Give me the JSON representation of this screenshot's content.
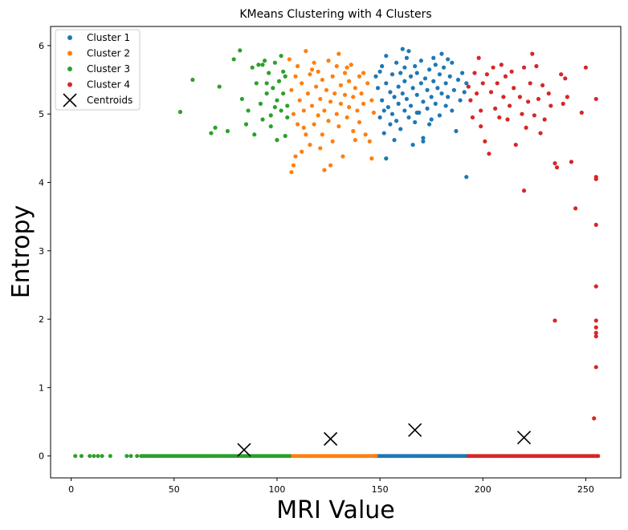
{
  "chart_data": {
    "type": "scatter",
    "title": "KMeans Clustering with 4 Clusters",
    "xlabel": "MRI Value",
    "ylabel": "Entropy",
    "xlim": [
      -10,
      267
    ],
    "ylim": [
      -0.32,
      6.28
    ],
    "xticks": [
      0,
      50,
      100,
      150,
      200,
      250
    ],
    "yticks": [
      0,
      1,
      2,
      3,
      4,
      5,
      6
    ],
    "grid": false,
    "legend_position": "upper-left",
    "legend": [
      {
        "label": "Cluster 1",
        "marker": "dot",
        "color": "#1f77b4"
      },
      {
        "label": "Cluster 2",
        "marker": "dot",
        "color": "#ff7f0e"
      },
      {
        "label": "Cluster 3",
        "marker": "dot",
        "color": "#2ca02c"
      },
      {
        "label": "Cluster 4",
        "marker": "dot",
        "color": "#d62728"
      },
      {
        "label": "Centroids",
        "marker": "x",
        "color": "#000000"
      }
    ],
    "series": [
      {
        "name": "Cluster 1",
        "color": "#1f77b4",
        "baseline_range": [
          148,
          193
        ],
        "points": [
          [
            148,
            5.55
          ],
          [
            149,
            5.38
          ],
          [
            150,
            5.62
          ],
          [
            150,
            4.95
          ],
          [
            151,
            5.2
          ],
          [
            151,
            5.7
          ],
          [
            152,
            5.05
          ],
          [
            152,
            4.72
          ],
          [
            153,
            5.45
          ],
          [
            153,
            5.85
          ],
          [
            154,
            5.1
          ],
          [
            155,
            5.32
          ],
          [
            155,
            4.85
          ],
          [
            156,
            5.58
          ],
          [
            156,
            5.0
          ],
          [
            157,
            5.25
          ],
          [
            158,
            5.75
          ],
          [
            158,
            4.9
          ],
          [
            159,
            5.4
          ],
          [
            159,
            5.15
          ],
          [
            160,
            5.6
          ],
          [
            160,
            4.78
          ],
          [
            161,
            5.3
          ],
          [
            161,
            5.95
          ],
          [
            162,
            5.05
          ],
          [
            162,
            5.48
          ],
          [
            163,
            5.22
          ],
          [
            163,
            5.82
          ],
          [
            164,
            4.95
          ],
          [
            165,
            5.55
          ],
          [
            165,
            5.12
          ],
          [
            166,
            5.38
          ],
          [
            167,
            5.7
          ],
          [
            167,
            4.88
          ],
          [
            168,
            5.28
          ],
          [
            168,
            5.6
          ],
          [
            169,
            5.02
          ],
          [
            170,
            5.45
          ],
          [
            170,
            5.78
          ],
          [
            171,
            5.18
          ],
          [
            171,
            4.65
          ],
          [
            172,
            5.52
          ],
          [
            173,
            5.35
          ],
          [
            173,
            5.08
          ],
          [
            174,
            5.65
          ],
          [
            175,
            5.25
          ],
          [
            175,
            4.92
          ],
          [
            176,
            5.48
          ],
          [
            177,
            5.72
          ],
          [
            177,
            5.15
          ],
          [
            178,
            5.38
          ],
          [
            179,
            5.58
          ],
          [
            179,
            4.98
          ],
          [
            180,
            5.3
          ],
          [
            181,
            5.68
          ],
          [
            182,
            5.12
          ],
          [
            182,
            5.45
          ],
          [
            183,
            5.25
          ],
          [
            184,
            5.55
          ],
          [
            185,
            5.05
          ],
          [
            185,
            5.75
          ],
          [
            186,
            5.35
          ],
          [
            187,
            4.75
          ],
          [
            188,
            5.5
          ],
          [
            189,
            5.2
          ],
          [
            190,
            5.6
          ],
          [
            191,
            5.32
          ],
          [
            192,
            5.45
          ],
          [
            192,
            4.08
          ],
          [
            153,
            4.35
          ],
          [
            157,
            4.62
          ],
          [
            166,
            4.55
          ],
          [
            171,
            4.6
          ],
          [
            164,
            5.92
          ],
          [
            176,
            5.82
          ],
          [
            183,
            5.8
          ],
          [
            162,
            5.68
          ],
          [
            168,
            5.02
          ],
          [
            174,
            4.85
          ],
          [
            180,
            5.88
          ]
        ]
      },
      {
        "name": "Cluster 2",
        "color": "#ff7f0e",
        "baseline_range": [
          106,
          148
        ],
        "points": [
          [
            106,
            5.8
          ],
          [
            107,
            5.35
          ],
          [
            107,
            4.15
          ],
          [
            108,
            5.0
          ],
          [
            108,
            4.25
          ],
          [
            109,
            5.55
          ],
          [
            110,
            4.85
          ],
          [
            110,
            5.7
          ],
          [
            111,
            5.2
          ],
          [
            112,
            4.45
          ],
          [
            112,
            5.45
          ],
          [
            113,
            5.05
          ],
          [
            114,
            5.92
          ],
          [
            114,
            4.7
          ],
          [
            115,
            5.3
          ],
          [
            116,
            5.58
          ],
          [
            116,
            4.55
          ],
          [
            117,
            5.12
          ],
          [
            118,
            4.85
          ],
          [
            118,
            5.75
          ],
          [
            119,
            5.4
          ],
          [
            120,
            4.98
          ],
          [
            120,
            5.62
          ],
          [
            121,
            5.22
          ],
          [
            122,
            4.7
          ],
          [
            122,
            5.5
          ],
          [
            123,
            5.05
          ],
          [
            123,
            4.18
          ],
          [
            124,
            5.35
          ],
          [
            125,
            5.78
          ],
          [
            125,
            4.9
          ],
          [
            126,
            5.18
          ],
          [
            127,
            5.55
          ],
          [
            127,
            4.6
          ],
          [
            128,
            5.3
          ],
          [
            129,
            5.0
          ],
          [
            129,
            5.7
          ],
          [
            130,
            4.82
          ],
          [
            131,
            5.42
          ],
          [
            131,
            5.15
          ],
          [
            132,
            4.38
          ],
          [
            133,
            5.6
          ],
          [
            133,
            5.28
          ],
          [
            134,
            4.95
          ],
          [
            135,
            5.48
          ],
          [
            135,
            5.1
          ],
          [
            136,
            5.72
          ],
          [
            137,
            5.25
          ],
          [
            137,
            4.75
          ],
          [
            138,
            5.38
          ],
          [
            139,
            5.05
          ],
          [
            140,
            5.55
          ],
          [
            140,
            4.88
          ],
          [
            141,
            5.3
          ],
          [
            142,
            5.15
          ],
          [
            143,
            4.7
          ],
          [
            144,
            5.45
          ],
          [
            145,
            4.6
          ],
          [
            146,
            5.2
          ],
          [
            146,
            4.35
          ],
          [
            147,
            5.02
          ],
          [
            109,
            4.38
          ],
          [
            113,
            4.8
          ],
          [
            117,
            5.65
          ],
          [
            121,
            4.5
          ],
          [
            126,
            4.25
          ],
          [
            130,
            5.88
          ],
          [
            134,
            5.68
          ],
          [
            138,
            4.62
          ],
          [
            142,
            5.6
          ]
        ]
      },
      {
        "name": "Cluster 3",
        "color": "#2ca02c",
        "baseline_range": [
          34,
          106
        ],
        "baseline_extra": [
          2,
          5,
          9,
          11,
          13,
          15,
          19,
          27,
          29,
          32
        ],
        "points": [
          [
            53,
            5.03
          ],
          [
            59,
            5.5
          ],
          [
            68,
            4.72
          ],
          [
            70,
            4.8
          ],
          [
            72,
            5.4
          ],
          [
            76,
            4.75
          ],
          [
            79,
            5.8
          ],
          [
            82,
            5.93
          ],
          [
            83,
            5.22
          ],
          [
            85,
            4.85
          ],
          [
            86,
            5.05
          ],
          [
            88,
            5.68
          ],
          [
            89,
            4.7
          ],
          [
            90,
            5.45
          ],
          [
            91,
            5.72
          ],
          [
            92,
            5.15
          ],
          [
            93,
            4.92
          ],
          [
            94,
            5.78
          ],
          [
            95,
            5.3
          ],
          [
            96,
            5.6
          ],
          [
            97,
            4.98
          ],
          [
            98,
            5.38
          ],
          [
            99,
            5.75
          ],
          [
            100,
            5.2
          ],
          [
            100,
            4.62
          ],
          [
            101,
            5.48
          ],
          [
            102,
            5.05
          ],
          [
            102,
            5.85
          ],
          [
            103,
            5.3
          ],
          [
            104,
            4.68
          ],
          [
            104,
            5.55
          ],
          [
            105,
            5.12
          ],
          [
            105,
            4.95
          ],
          [
            93,
            5.72
          ],
          [
            97,
            4.82
          ],
          [
            99,
            5.1
          ],
          [
            103,
            5.62
          ],
          [
            95,
            5.45
          ]
        ]
      },
      {
        "name": "Cluster 4",
        "color": "#d62728",
        "baseline_range": [
          193,
          256
        ],
        "points": [
          [
            193,
            5.4
          ],
          [
            194,
            5.2
          ],
          [
            195,
            4.95
          ],
          [
            196,
            5.6
          ],
          [
            197,
            5.3
          ],
          [
            198,
            5.82
          ],
          [
            199,
            4.82
          ],
          [
            199,
            5.05
          ],
          [
            200,
            5.45
          ],
          [
            201,
            4.6
          ],
          [
            202,
            5.58
          ],
          [
            203,
            4.42
          ],
          [
            204,
            5.32
          ],
          [
            205,
            5.68
          ],
          [
            206,
            5.08
          ],
          [
            207,
            5.45
          ],
          [
            208,
            4.95
          ],
          [
            209,
            5.72
          ],
          [
            210,
            5.25
          ],
          [
            211,
            5.55
          ],
          [
            212,
            4.92
          ],
          [
            213,
            5.12
          ],
          [
            214,
            5.62
          ],
          [
            215,
            5.38
          ],
          [
            216,
            4.55
          ],
          [
            218,
            5.25
          ],
          [
            219,
            5.0
          ],
          [
            220,
            5.68
          ],
          [
            221,
            4.8
          ],
          [
            222,
            5.18
          ],
          [
            223,
            5.45
          ],
          [
            224,
            5.88
          ],
          [
            225,
            4.98
          ],
          [
            226,
            5.7
          ],
          [
            227,
            5.22
          ],
          [
            228,
            4.72
          ],
          [
            229,
            5.42
          ],
          [
            230,
            4.92
          ],
          [
            232,
            5.3
          ],
          [
            233,
            5.12
          ],
          [
            235,
            4.28
          ],
          [
            236,
            4.22
          ],
          [
            238,
            5.58
          ],
          [
            239,
            5.15
          ],
          [
            240,
            5.52
          ],
          [
            241,
            5.25
          ],
          [
            243,
            4.3
          ],
          [
            245,
            3.62
          ],
          [
            248,
            5.02
          ],
          [
            250,
            5.68
          ],
          [
            220,
            3.88
          ],
          [
            235,
            1.98
          ],
          [
            255,
            4.05
          ],
          [
            255,
            4.08
          ],
          [
            255,
            3.38
          ],
          [
            255,
            2.48
          ],
          [
            255,
            1.98
          ],
          [
            255,
            1.88
          ],
          [
            255,
            1.8
          ],
          [
            255,
            1.75
          ],
          [
            255,
            1.3
          ],
          [
            254,
            0.55
          ],
          [
            255,
            5.22
          ]
        ]
      },
      {
        "name": "Centroids",
        "color": "#000000",
        "marker": "x",
        "points": [
          [
            84,
            0.09
          ],
          [
            126,
            0.25
          ],
          [
            167,
            0.38
          ],
          [
            220,
            0.27
          ]
        ]
      }
    ]
  }
}
